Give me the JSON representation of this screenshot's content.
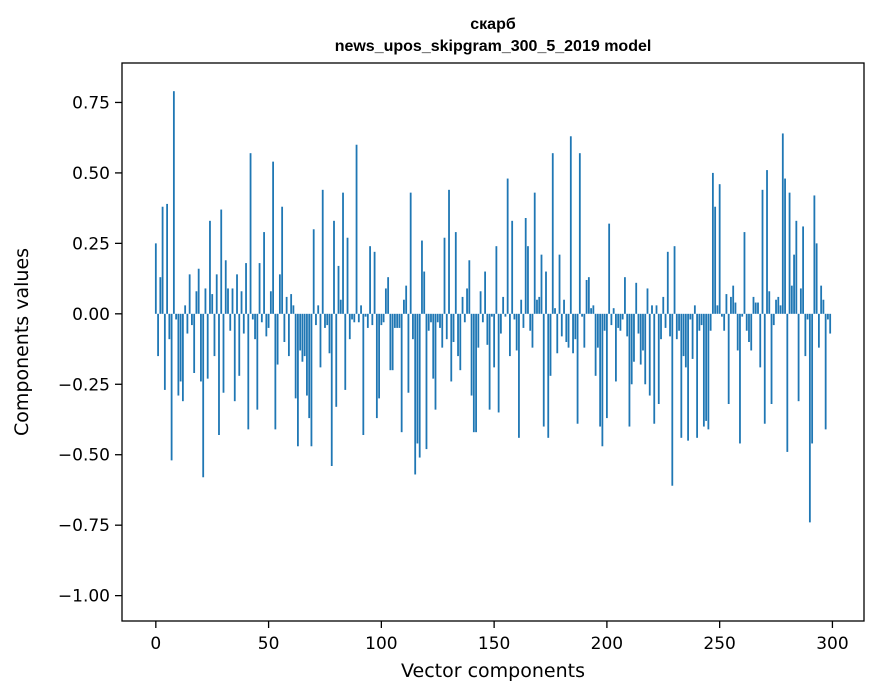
{
  "chart_data": {
    "type": "bar",
    "title": "скарб",
    "subtitle": "news_upos_skipgram_300_5_2019 model",
    "xlabel": "Vector components",
    "ylabel": "Components values",
    "xlim": [
      -15,
      314
    ],
    "ylim": [
      -1.09,
      0.89
    ],
    "xticks": [
      0,
      50,
      100,
      150,
      200,
      250,
      300
    ],
    "xtick_labels": [
      "0",
      "50",
      "100",
      "150",
      "200",
      "250",
      "300"
    ],
    "yticks": [
      -1.0,
      -0.75,
      -0.5,
      -0.25,
      0.0,
      0.25,
      0.5,
      0.75
    ],
    "ytick_labels": [
      "−1.00",
      "−0.75",
      "−0.50",
      "−0.25",
      "0.00",
      "0.25",
      "0.50",
      "0.75"
    ],
    "grid": false,
    "color": "#1f77b4",
    "x_start": 0,
    "values": [
      0.25,
      -0.15,
      0.13,
      0.38,
      -0.27,
      0.39,
      -0.09,
      -0.52,
      0.79,
      -0.02,
      -0.29,
      -0.24,
      -0.31,
      0.03,
      -0.07,
      0.14,
      -0.04,
      -0.21,
      0.08,
      0.16,
      -0.24,
      -0.58,
      0.09,
      -0.23,
      0.33,
      0.07,
      -0.15,
      0.14,
      -0.43,
      0.37,
      -0.28,
      0.19,
      0.09,
      -0.06,
      0.09,
      -0.31,
      0.14,
      -0.22,
      0.08,
      -0.07,
      0.18,
      -0.41,
      0.57,
      -0.02,
      -0.09,
      -0.34,
      0.18,
      -0.03,
      0.29,
      -0.08,
      -0.05,
      0.08,
      0.54,
      -0.41,
      -0.18,
      0.14,
      0.38,
      -0.1,
      0.06,
      -0.15,
      0.07,
      0.03,
      -0.3,
      -0.47,
      -0.13,
      -0.17,
      -0.15,
      -0.29,
      -0.37,
      -0.47,
      0.3,
      -0.04,
      0.03,
      -0.19,
      0.44,
      -0.05,
      -0.04,
      -0.14,
      -0.54,
      0.33,
      -0.33,
      0.17,
      0.05,
      0.43,
      -0.27,
      0.27,
      -0.09,
      -0.02,
      -0.03,
      0.6,
      -0.03,
      0.03,
      -0.43,
      -0.01,
      -0.05,
      0.24,
      -0.04,
      0.22,
      -0.37,
      -0.3,
      -0.04,
      -0.03,
      0.09,
      0.13,
      -0.2,
      -0.2,
      -0.05,
      -0.05,
      -0.05,
      -0.42,
      0.05,
      0.1,
      -0.28,
      0.43,
      -0.09,
      -0.57,
      -0.46,
      -0.51,
      0.26,
      0.15,
      -0.48,
      -0.06,
      -0.03,
      -0.23,
      -0.34,
      -0.03,
      -0.05,
      -0.12,
      0.27,
      -0.09,
      0.44,
      -0.24,
      -0.1,
      0.29,
      -0.15,
      -0.2,
      0.06,
      -0.03,
      0.09,
      0.19,
      -0.29,
      -0.42,
      -0.42,
      -0.12,
      0.08,
      -0.03,
      0.15,
      -0.11,
      -0.34,
      -0.01,
      -0.19,
      0.24,
      -0.35,
      -0.07,
      0.06,
      -0.01,
      0.48,
      -0.15,
      0.33,
      -0.02,
      -0.13,
      -0.44,
      0.05,
      -0.05,
      0.34,
      0.24,
      -0.06,
      -0.12,
      0.43,
      0.05,
      0.06,
      0.21,
      -0.4,
      0.15,
      -0.44,
      -0.22,
      0.57,
      0.02,
      -0.14,
      0.21,
      -0.08,
      0.05,
      -0.1,
      -0.12,
      0.63,
      -0.14,
      -0.09,
      -0.39,
      0.57,
      -0.01,
      -0.12,
      0.12,
      0.13,
      0.02,
      0.03,
      -0.22,
      -0.12,
      -0.4,
      -0.47,
      -0.06,
      -0.37,
      0.32,
      -0.04,
      0.02,
      -0.24,
      -0.05,
      -0.06,
      -0.02,
      0.13,
      -0.08,
      -0.4,
      -0.25,
      -0.17,
      0.11,
      -0.07,
      -0.18,
      -0.13,
      -0.25,
      0.09,
      -0.29,
      0.03,
      -0.39,
      0.03,
      -0.32,
      -0.09,
      0.06,
      -0.05,
      0.22,
      -0.08,
      -0.61,
      0.24,
      -0.09,
      -0.06,
      -0.44,
      -0.15,
      -0.19,
      -0.45,
      -0.02,
      -0.16,
      0.03,
      -0.44,
      -0.06,
      -0.04,
      -0.4,
      -0.38,
      -0.41,
      -0.06,
      0.5,
      0.38,
      0.03,
      0.46,
      -0.01,
      -0.06,
      0.07,
      -0.32,
      0.06,
      0.1,
      0.04,
      -0.13,
      -0.46,
      -0.01,
      0.29,
      -0.06,
      -0.1,
      -0.13,
      0.06,
      0.04,
      0.04,
      -0.19,
      0.44,
      -0.39,
      0.51,
      0.08,
      -0.32,
      -0.04,
      0.05,
      0.06,
      0.03,
      0.64,
      0.48,
      -0.49,
      0.43,
      0.1,
      0.21,
      0.33,
      -0.31,
      0.09,
      0.31,
      -0.15,
      -0.02,
      -0.74,
      -0.46,
      0.42,
      0.25,
      -0.12,
      0.1,
      0.05,
      -0.41,
      -0.02,
      -0.07
    ]
  }
}
